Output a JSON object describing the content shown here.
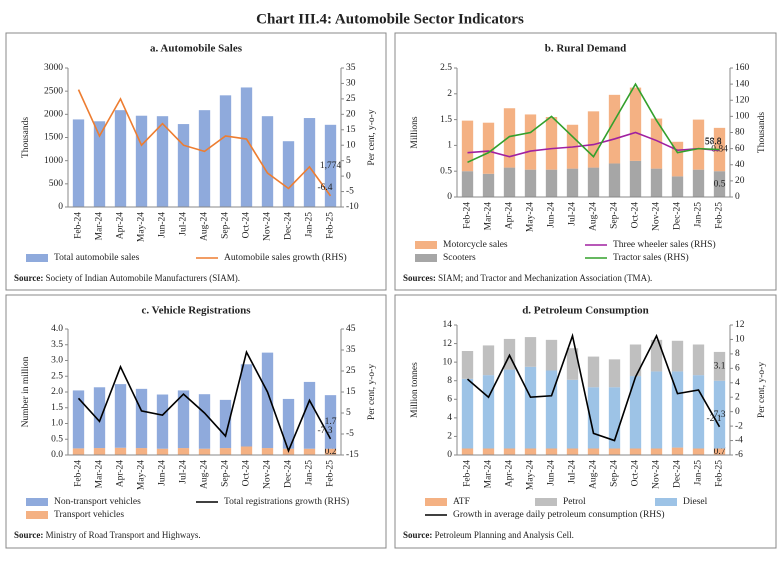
{
  "title": "Chart III.4: Automobile Sector Indicators",
  "chart_data": [
    {
      "type": "combo",
      "title": "a. Automobile Sales",
      "categories": [
        "Feb-24",
        "Mar-24",
        "Apr-24",
        "May-24",
        "Jun-24",
        "Jul-24",
        "Aug-24",
        "Sep-24",
        "Oct-24",
        "Nov-24",
        "Dec-24",
        "Jan-25",
        "Feb-25"
      ],
      "y_label": "Thousands",
      "y2_label": "Per cent, y-o-y",
      "ylim": [
        0,
        3000
      ],
      "yticks": [
        0,
        500,
        1000,
        1500,
        2000,
        2500,
        3000
      ],
      "y2lim": [
        -10,
        35
      ],
      "y2ticks": [
        -10,
        -5,
        0,
        5,
        10,
        15,
        20,
        25,
        30,
        35
      ],
      "series": [
        {
          "name": "Total automobile sales",
          "kind": "bar",
          "color": "#8faadc",
          "values": [
            1890,
            1850,
            2090,
            1970,
            1960,
            1790,
            2090,
            2410,
            2580,
            1960,
            1420,
            1920,
            1774
          ],
          "value_labels": [
            null,
            null,
            null,
            null,
            null,
            null,
            null,
            null,
            null,
            null,
            null,
            null,
            "1,774"
          ]
        },
        {
          "name": "Automobile sales growth (RHS)",
          "kind": "line",
          "axis": "y2",
          "color": "#ed7d31",
          "values": [
            28,
            13,
            25,
            10,
            17,
            10,
            8,
            13,
            12,
            1,
            -4,
            3,
            -6.4
          ],
          "value_labels": [
            null,
            null,
            null,
            null,
            null,
            null,
            null,
            null,
            null,
            null,
            null,
            null,
            "-6.4"
          ]
        }
      ],
      "source_label": "Source:",
      "source": "Society of Indian Automobile Manufacturers (SIAM)."
    },
    {
      "type": "combo",
      "title": "b. Rural Demand",
      "categories": [
        "Feb-24",
        "Mar-24",
        "Apr-24",
        "May-24",
        "Jun-24",
        "Jul-24",
        "Aug-24",
        "Sep-24",
        "Oct-24",
        "Nov-24",
        "Dec-24",
        "Jan-25",
        "Feb-25"
      ],
      "y_label": "Millions",
      "y2_label": "Thousands",
      "ylim": [
        0,
        2.5
      ],
      "yticks": [
        0,
        0.5,
        1,
        1.5,
        2,
        2.5
      ],
      "y2lim": [
        0,
        160
      ],
      "y2ticks": [
        0,
        20,
        40,
        60,
        80,
        100,
        120,
        140,
        160
      ],
      "series": [
        {
          "name": "Scooters",
          "kind": "bar",
          "color": "#a6a6a6",
          "values": [
            0.5,
            0.45,
            0.57,
            0.53,
            0.53,
            0.55,
            0.57,
            0.65,
            0.7,
            0.55,
            0.4,
            0.53,
            0.5
          ],
          "value_labels": [
            null,
            null,
            null,
            null,
            null,
            null,
            null,
            null,
            null,
            null,
            null,
            null,
            "0.5"
          ]
        },
        {
          "name": "Motorcycle sales",
          "kind": "bar",
          "color": "#f4b183",
          "values": [
            0.98,
            0.99,
            1.15,
            1.07,
            1.02,
            0.85,
            1.09,
            1.33,
            1.42,
            0.97,
            0.67,
            0.97,
            0.84
          ],
          "value_labels": [
            null,
            null,
            null,
            null,
            null,
            null,
            null,
            null,
            null,
            null,
            null,
            null,
            "0.84"
          ]
        },
        {
          "name": "Three wheeler sales (RHS)",
          "kind": "line",
          "axis": "y2",
          "color": "#a020a0",
          "values": [
            55,
            57,
            50,
            57,
            60,
            62,
            65,
            72,
            80,
            70,
            58,
            60,
            57.8
          ],
          "value_labels": [
            null,
            null,
            null,
            null,
            null,
            null,
            null,
            null,
            null,
            null,
            null,
            null,
            "57.8"
          ]
        },
        {
          "name": "Tractor sales (RHS)",
          "kind": "line",
          "axis": "y2",
          "color": "#33a02c",
          "values": [
            43,
            55,
            75,
            80,
            100,
            75,
            50,
            95,
            140,
            95,
            55,
            60,
            58.8
          ],
          "value_labels": [
            null,
            null,
            null,
            null,
            null,
            null,
            null,
            null,
            null,
            null,
            null,
            null,
            "58.8"
          ]
        }
      ],
      "source_label": "Sources:",
      "source": "SIAM; and Tractor and Mechanization Association (TMA)."
    },
    {
      "type": "combo",
      "title": "c. Vehicle Registrations",
      "categories": [
        "Feb-24",
        "Mar-24",
        "Apr-24",
        "May-24",
        "Jun-24",
        "Jul-24",
        "Aug-24",
        "Sep-24",
        "Oct-24",
        "Nov-24",
        "Dec-24",
        "Jan-25",
        "Feb-25"
      ],
      "y_label": "Number in million",
      "y2_label": "Per cent, y-o-y",
      "ylim": [
        0,
        4
      ],
      "yticks": [
        {
          "value": 0,
          "label": "0.0"
        },
        0.5,
        {
          "value": 1,
          "label": "1.0"
        },
        1.5,
        {
          "value": 2,
          "label": "2.0"
        },
        2.5,
        {
          "value": 3,
          "label": "3.0"
        },
        3.5,
        {
          "value": 4,
          "label": "4.0"
        }
      ],
      "y2lim": [
        -15,
        45
      ],
      "y2ticks": [
        -15,
        -5,
        5,
        15,
        25,
        35,
        45
      ],
      "series": [
        {
          "name": "Transport vehicles",
          "kind": "bar",
          "color": "#f4b183",
          "values": [
            0.21,
            0.22,
            0.23,
            0.22,
            0.2,
            0.22,
            0.2,
            0.22,
            0.27,
            0.22,
            0.2,
            0.2,
            0.2
          ],
          "value_labels": [
            null,
            null,
            null,
            null,
            null,
            null,
            null,
            null,
            null,
            null,
            null,
            null,
            "0.2"
          ]
        },
        {
          "name": "Non-transport vehicles",
          "kind": "bar",
          "color": "#8faadc",
          "values": [
            1.84,
            1.93,
            2.02,
            1.88,
            1.72,
            1.83,
            1.73,
            1.53,
            2.61,
            3.03,
            1.58,
            2.12,
            1.7
          ],
          "value_labels": [
            null,
            null,
            null,
            null,
            null,
            null,
            null,
            null,
            null,
            null,
            null,
            null,
            "1.7"
          ]
        },
        {
          "name": "Total registrations growth (RHS)",
          "kind": "line",
          "axis": "y2",
          "color": "#000000",
          "values": [
            12,
            1,
            27,
            6,
            4,
            14,
            5,
            -6,
            34,
            15,
            -13,
            11,
            -7.3
          ],
          "value_labels": [
            null,
            null,
            null,
            null,
            null,
            null,
            null,
            null,
            null,
            null,
            null,
            null,
            "-7.3"
          ]
        }
      ],
      "source_label": "Source:",
      "source": "Ministry of Road Transport and Highways."
    },
    {
      "type": "combo",
      "title": "d. Petroleum Consumption",
      "categories": [
        "Feb-24",
        "Mar-24",
        "Apr-24",
        "May-24",
        "Jun-24",
        "Jul-24",
        "Aug-24",
        "Sep-24",
        "Oct-24",
        "Nov-24",
        "Dec-24",
        "Jan-25",
        "Feb-25"
      ],
      "y_label": "Million tonnes",
      "y2_label": "Per cent, y-o-y",
      "ylim": [
        0,
        14
      ],
      "yticks": [
        0,
        2,
        4,
        6,
        8,
        10,
        12,
        14
      ],
      "y2lim": [
        -6,
        12
      ],
      "y2ticks": [
        -6,
        -4,
        -2,
        0,
        2,
        4,
        6,
        8,
        10,
        12
      ],
      "series": [
        {
          "name": "ATF",
          "kind": "bar",
          "color": "#f4b183",
          "values": [
            0.7,
            0.7,
            0.7,
            0.7,
            0.7,
            0.7,
            0.7,
            0.7,
            0.7,
            0.7,
            0.8,
            0.7,
            0.7
          ],
          "value_labels": [
            null,
            null,
            null,
            null,
            null,
            null,
            null,
            null,
            null,
            null,
            null,
            null,
            "0.7"
          ]
        },
        {
          "name": "Diesel",
          "kind": "bar",
          "color": "#9dc3e6",
          "values": [
            7.5,
            7.9,
            8.5,
            8.8,
            8.4,
            7.4,
            6.6,
            6.6,
            7.8,
            8.3,
            8.2,
            7.9,
            7.3
          ],
          "value_labels": [
            null,
            null,
            null,
            null,
            null,
            null,
            null,
            null,
            null,
            null,
            null,
            null,
            "7.3"
          ]
        },
        {
          "name": "Petrol",
          "kind": "bar",
          "color": "#bfbfbf",
          "values": [
            3.0,
            3.2,
            3.3,
            3.2,
            3.3,
            3.4,
            3.3,
            3.0,
            3.4,
            3.4,
            3.3,
            3.3,
            3.1
          ],
          "value_labels": [
            null,
            null,
            null,
            null,
            null,
            null,
            null,
            null,
            null,
            null,
            null,
            null,
            "3.1"
          ]
        },
        {
          "name": "Growth in average daily petroleum consumption (RHS)",
          "kind": "line",
          "axis": "y2",
          "color": "#000000",
          "values": [
            4.5,
            2.0,
            7.8,
            2.0,
            2.2,
            10.5,
            -3.0,
            -4.0,
            4.8,
            10.5,
            2.5,
            3.0,
            -2.1
          ],
          "value_labels": [
            null,
            null,
            null,
            null,
            null,
            null,
            null,
            null,
            null,
            null,
            null,
            null,
            "-2.1"
          ]
        }
      ],
      "source_label": "Source:",
      "source": "Petroleum Planning and Analysis Cell."
    }
  ]
}
